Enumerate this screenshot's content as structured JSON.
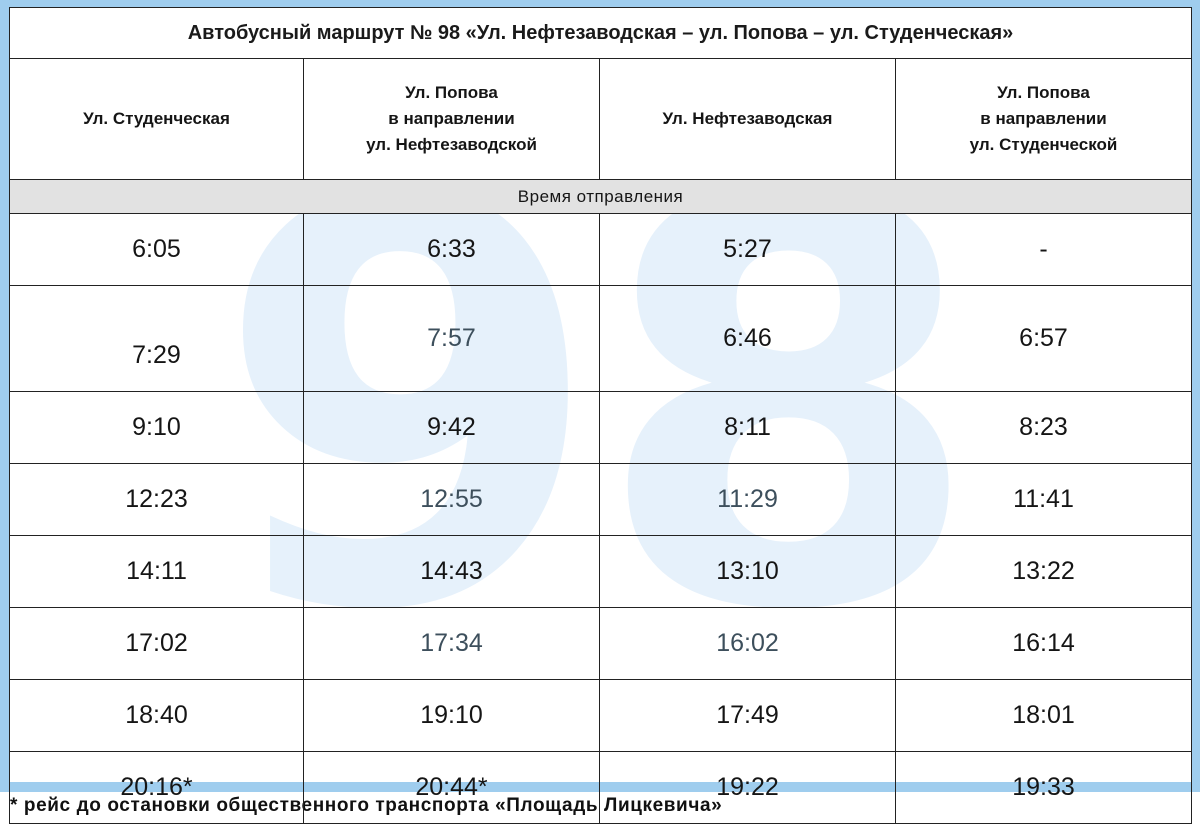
{
  "title": "Автобусный маршрут № 98 «Ул. Нефтезаводская – ул. Попова – ул. Студенческая»",
  "watermark": "98",
  "columns": [
    {
      "lines": [
        "Ул. Студенческая"
      ]
    },
    {
      "lines": [
        "Ул. Попова",
        "в направлении",
        "ул. Нефтезаводской"
      ]
    },
    {
      "lines": [
        "Ул. Нефтезаводская"
      ]
    },
    {
      "lines": [
        "Ул. Попова",
        "в направлении",
        "ул. Студенческой"
      ]
    }
  ],
  "subheader": "Время отправления",
  "rows": [
    [
      "6:05",
      "6:33",
      "5:27",
      "-"
    ],
    [
      "7:29",
      "7:57",
      "6:46",
      "6:57"
    ],
    [
      "9:10",
      "9:42",
      "8:11",
      "8:23"
    ],
    [
      "12:23",
      "12:55",
      "11:29",
      "11:41"
    ],
    [
      "14:11",
      "14:43",
      "13:10",
      "13:22"
    ],
    [
      "17:02",
      "17:34",
      "16:02",
      "16:14"
    ],
    [
      "18:40",
      "19:10",
      "17:49",
      "18:01"
    ],
    [
      "20:16*",
      "20:44*",
      "19:22",
      "19:33"
    ]
  ],
  "footnote": "* рейс до остановки общественного транспорта «Площадь Лицкевича»",
  "colors": {
    "frame": "#9fcdee",
    "watermark": "#e6f1fb",
    "subheader_bg": "#e2e2e2"
  }
}
